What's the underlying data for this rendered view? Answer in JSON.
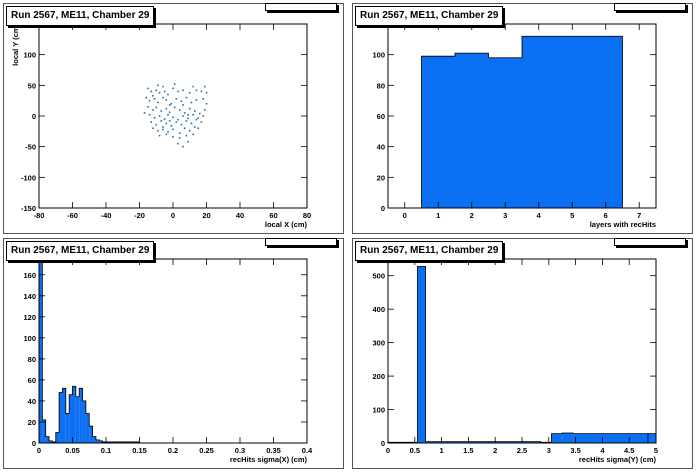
{
  "chart_data": [
    {
      "type": "scatter",
      "title": "Run 2567, ME11, Chamber 29",
      "xlabel": "local X (cm)",
      "ylabel": "local Y (cm)",
      "xlim": [
        -80,
        80
      ],
      "ylim": [
        -150,
        150
      ],
      "xticks": [
        -80,
        -60,
        -40,
        -20,
        0,
        20,
        40,
        60,
        80
      ],
      "yticks": [
        -150,
        -100,
        -50,
        0,
        50,
        100,
        150
      ],
      "marker_color": "#1f6fb0",
      "points": [
        [
          -15,
          45
        ],
        [
          -13,
          40
        ],
        [
          -10,
          42
        ],
        [
          -8,
          38
        ],
        [
          -5,
          40
        ],
        [
          -3,
          35
        ],
        [
          0,
          45
        ],
        [
          3,
          40
        ],
        [
          6,
          42
        ],
        [
          10,
          38
        ],
        [
          14,
          42
        ],
        [
          17,
          40
        ],
        [
          20,
          38
        ],
        [
          -16,
          30
        ],
        [
          -14,
          25
        ],
        [
          -11,
          28
        ],
        [
          -9,
          22
        ],
        [
          -6,
          30
        ],
        [
          -4,
          26
        ],
        [
          -1,
          20
        ],
        [
          2,
          28
        ],
        [
          5,
          24
        ],
        [
          8,
          30
        ],
        [
          11,
          22
        ],
        [
          14,
          26
        ],
        [
          18,
          28
        ],
        [
          -15,
          15
        ],
        [
          -12,
          10
        ],
        [
          -10,
          14
        ],
        [
          -7,
          8
        ],
        [
          -4,
          12
        ],
        [
          -2,
          6
        ],
        [
          1,
          14
        ],
        [
          4,
          10
        ],
        [
          7,
          5
        ],
        [
          10,
          12
        ],
        [
          13,
          8
        ],
        [
          16,
          4
        ],
        [
          19,
          10
        ],
        [
          -14,
          2
        ],
        [
          -11,
          -3
        ],
        [
          -8,
          0
        ],
        [
          -5,
          -5
        ],
        [
          -3,
          2
        ],
        [
          0,
          -2
        ],
        [
          3,
          -6
        ],
        [
          6,
          0
        ],
        [
          9,
          -4
        ],
        [
          12,
          2
        ],
        [
          15,
          -3
        ],
        [
          18,
          0
        ],
        [
          -13,
          -10
        ],
        [
          -10,
          -14
        ],
        [
          -7,
          -8
        ],
        [
          -4,
          -12
        ],
        [
          -1,
          -16
        ],
        [
          2,
          -10
        ],
        [
          5,
          -14
        ],
        [
          8,
          -8
        ],
        [
          11,
          -12
        ],
        [
          14,
          -6
        ],
        [
          17,
          -10
        ],
        [
          -12,
          -20
        ],
        [
          -9,
          -24
        ],
        [
          -6,
          -18
        ],
        [
          -3,
          -26
        ],
        [
          0,
          -22
        ],
        [
          4,
          -28
        ],
        [
          7,
          -20
        ],
        [
          10,
          -24
        ],
        [
          13,
          -18
        ],
        [
          -8,
          -32
        ],
        [
          -4,
          -30
        ],
        [
          0,
          -34
        ],
        [
          4,
          -36
        ],
        [
          8,
          -32
        ],
        [
          12,
          -30
        ],
        [
          3,
          -45
        ],
        [
          6,
          -50
        ],
        [
          9,
          -42
        ],
        [
          -9,
          50
        ],
        [
          -6,
          48
        ],
        [
          1,
          52
        ],
        [
          12,
          48
        ],
        [
          19,
          48
        ],
        [
          -12,
          33
        ],
        [
          -2,
          18
        ],
        [
          6,
          18
        ],
        [
          9,
          2
        ],
        [
          -6,
          -22
        ],
        [
          15,
          -20
        ],
        [
          -2,
          -8
        ],
        [
          20,
          20
        ],
        [
          -17,
          5
        ]
      ]
    },
    {
      "type": "bar",
      "title": "Run 2567, ME11, Chamber 29",
      "xlabel": "layers with recHits",
      "ylabel": "",
      "xlim": [
        -0.5,
        7.5
      ],
      "ylim": [
        0,
        120
      ],
      "xticks": [
        0,
        1,
        2,
        3,
        4,
        5,
        6,
        7
      ],
      "yticks": [
        0,
        20,
        40,
        60,
        80,
        100
      ],
      "bin_edges": [
        -0.5,
        0.5,
        1.5,
        2.5,
        3.5,
        4.5,
        5.5,
        6.5,
        7.5
      ],
      "values": [
        0,
        99,
        101,
        98,
        112,
        112,
        112,
        0
      ],
      "fill_color": "#0a6ff0"
    },
    {
      "type": "bar",
      "title": "Run 2567, ME11, Chamber 29",
      "xlabel": "recHits sigma(X) (cm)",
      "ylabel": "",
      "xlim": [
        0,
        0.4
      ],
      "ylim": [
        0,
        175
      ],
      "xticks": [
        0,
        0.05,
        0.1,
        0.15,
        0.2,
        0.25,
        0.3,
        0.35,
        0.4
      ],
      "xtick_labels": [
        "0",
        "0.05",
        "0.1",
        "0.15",
        "0.2",
        "0.25",
        "0.3",
        "0.35",
        "0.4"
      ],
      "yticks": [
        0,
        20,
        40,
        60,
        80,
        100,
        120,
        140,
        160
      ],
      "bin_width": 0.005,
      "values": [
        172,
        22,
        6,
        2,
        1,
        10,
        48,
        52,
        28,
        46,
        54,
        44,
        52,
        40,
        28,
        16,
        6,
        3,
        2,
        1,
        1,
        1,
        1,
        1,
        1,
        1,
        1,
        1,
        1,
        1
      ],
      "fill_color": "#0a6ff0"
    },
    {
      "type": "bar",
      "title": "Run 2567, ME11, Chamber 29",
      "xlabel": "recHits sigma(Y) (cm)",
      "ylabel": "",
      "xlim": [
        0,
        5
      ],
      "ylim": [
        0,
        550
      ],
      "xticks": [
        0,
        0.5,
        1,
        1.5,
        2,
        2.5,
        3,
        3.5,
        4,
        4.5,
        5
      ],
      "xtick_labels": [
        "0",
        "0.5",
        "1",
        "1.5",
        "2",
        "2.5",
        "3",
        "3.5",
        "4",
        "4.5",
        "5"
      ],
      "yticks": [
        0,
        100,
        200,
        300,
        400,
        500
      ],
      "bin_edges": [
        0,
        0.55,
        0.7,
        2.85,
        3.05,
        3.25,
        3.45,
        4.85,
        5.0
      ],
      "values": [
        2,
        528,
        4,
        2,
        28,
        30,
        28,
        2
      ],
      "extra_bars": [
        {
          "x0": 4.85,
          "x1": 5.0,
          "value": 28
        }
      ],
      "fill_color": "#0a6ff0"
    }
  ]
}
